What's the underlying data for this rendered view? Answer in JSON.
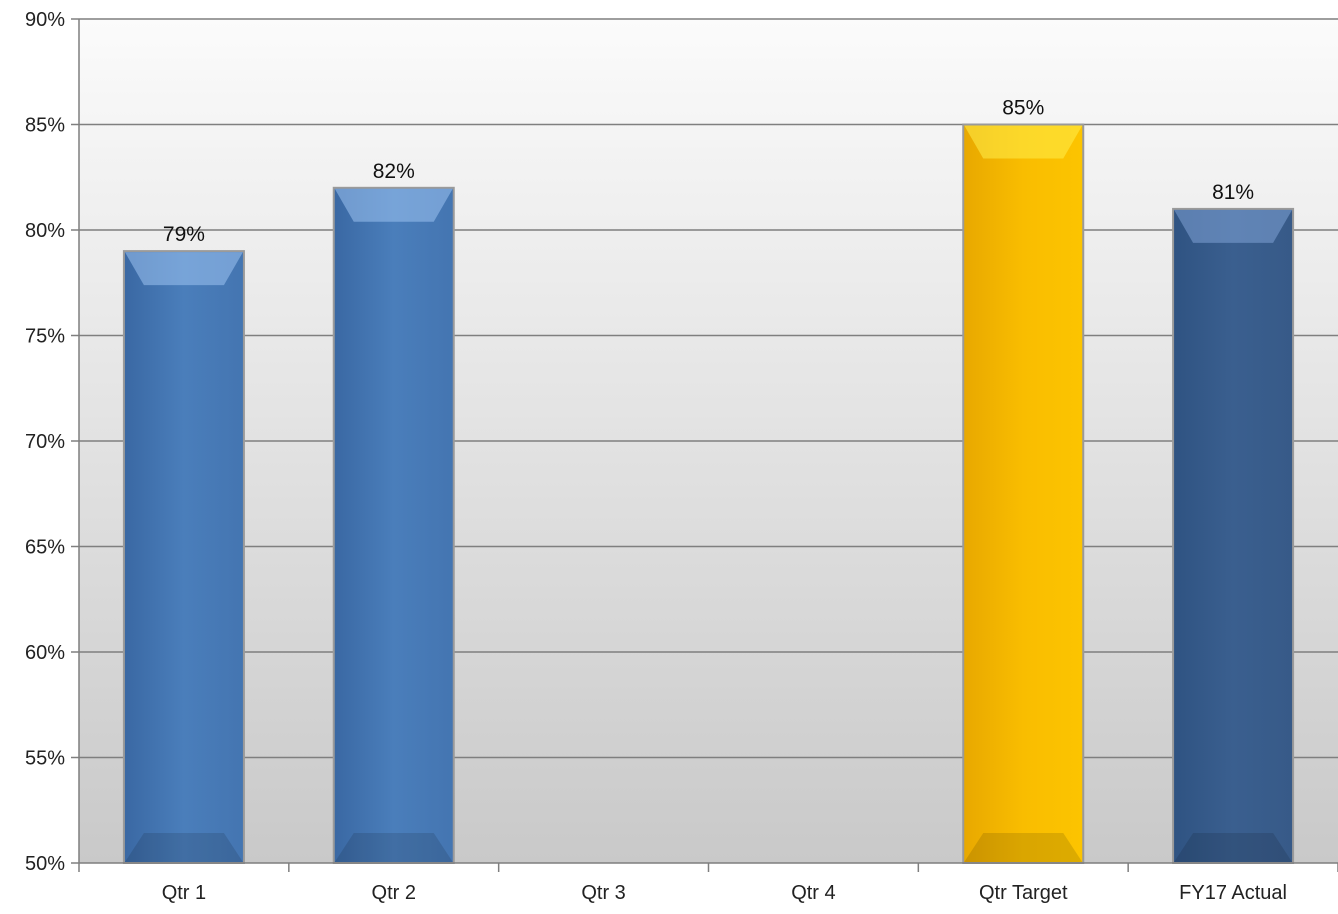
{
  "chart_data": {
    "type": "bar",
    "title": "",
    "xlabel": "",
    "ylabel": "",
    "categories": [
      "Qtr 1",
      "Qtr 2",
      "Qtr 3",
      "Qtr 4",
      "Qtr Target",
      "FY17 Actual"
    ],
    "values": [
      79,
      82,
      null,
      null,
      85,
      81
    ],
    "data_labels": [
      "79%",
      "82%",
      "",
      "",
      "85%",
      "81%"
    ],
    "bar_colors": [
      "#4a7ebb",
      "#4a7ebb",
      "#4a7ebb",
      "#4a7ebb",
      "#f9bd00",
      "#3a5f8f"
    ],
    "ylim": [
      50,
      90
    ],
    "yticks": [
      50,
      55,
      60,
      65,
      70,
      75,
      80,
      85,
      90
    ],
    "ytick_labels": [
      "50%",
      "55%",
      "60%",
      "65%",
      "70%",
      "75%",
      "80%",
      "85%",
      "90%"
    ],
    "grid": true,
    "legend": "none"
  }
}
